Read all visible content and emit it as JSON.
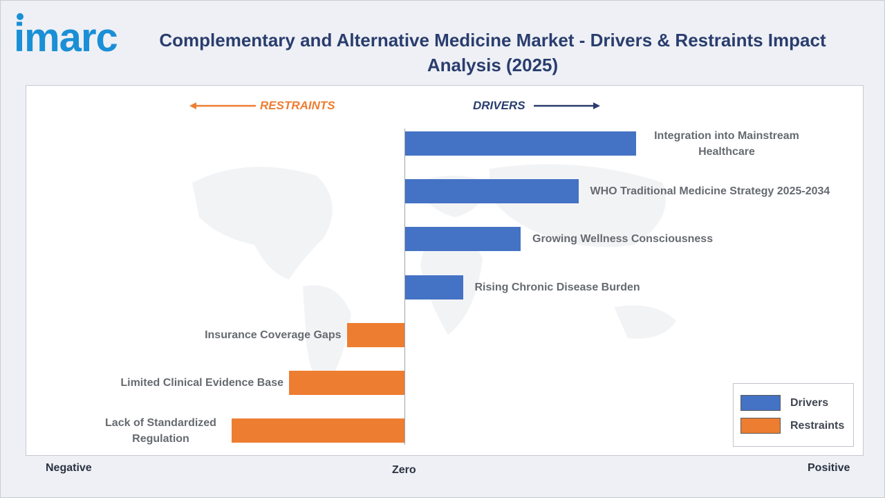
{
  "logo_text": "imarc",
  "title": "Complementary and Alternative Medicine Market - Drivers & Restraints Impact Analysis (2025)",
  "direction_labels": {
    "restraints": "RESTRAINTS",
    "drivers": "DRIVERS"
  },
  "axis_words": {
    "negative": "Negative",
    "zero": "Zero",
    "positive": "Positive"
  },
  "colors": {
    "drivers": "#4472c4",
    "restraints": "#ed7d31",
    "title": "#2a3d6e"
  },
  "legend": [
    {
      "label": "Drivers",
      "color": "#4472c4"
    },
    {
      "label": "Restraints",
      "color": "#ed7d31"
    }
  ],
  "chart_data": {
    "type": "bar",
    "orientation": "horizontal",
    "title": "Complementary and Alternative Medicine Market - Drivers & Restraints Impact Analysis (2025)",
    "xlabel": "",
    "ylabel": "",
    "xlim": [
      -4,
      4
    ],
    "grid": false,
    "legend_position": "bottom-right",
    "categories": [
      "Integration into Mainstream Healthcare",
      "WHO Traditional Medicine Strategy 2025-2034",
      "Growing Wellness Consciousness",
      "Rising Chronic Disease Burden",
      "Insurance Coverage Gaps",
      "Limited Clinical Evidence Base",
      "Lack of Standardized Regulation"
    ],
    "series": [
      {
        "name": "Drivers",
        "values": [
          4,
          3,
          2,
          1,
          null,
          null,
          null
        ]
      },
      {
        "name": "Restraints",
        "values": [
          null,
          null,
          null,
          null,
          -1,
          -2,
          -3
        ]
      }
    ]
  }
}
